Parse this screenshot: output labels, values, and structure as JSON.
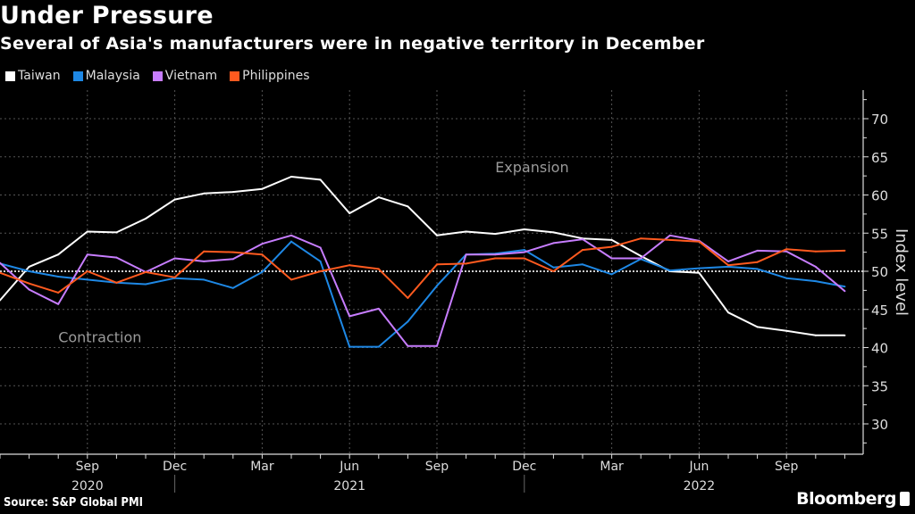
{
  "header": {
    "title": "Under Pressure",
    "subtitle": "Several of Asia's manufacturers were in negative territory in December"
  },
  "footer": {
    "source": "Source: S&P Global PMI",
    "brand": "Bloomberg"
  },
  "chart_data": {
    "type": "line",
    "title": "Under Pressure",
    "subtitle": "Several of Asia's manufacturers were in negative territory in December",
    "xlabel": "",
    "ylabel": "Index level",
    "ylim": [
      26,
      74
    ],
    "yticks": [
      30,
      35,
      40,
      45,
      50,
      55,
      60,
      65,
      70
    ],
    "grid": true,
    "legend_position": "top-left",
    "reference_line": 50,
    "annotations": [
      {
        "text": "Expansion",
        "x": "Nov 2021",
        "y": 63
      },
      {
        "text": "Contraction",
        "x": "Aug 2020",
        "y": 40.7
      }
    ],
    "x": [
      "Jun 2020",
      "Jul 2020",
      "Aug 2020",
      "Sep 2020",
      "Oct 2020",
      "Nov 2020",
      "Dec 2020",
      "Jan 2021",
      "Feb 2021",
      "Mar 2021",
      "Apr 2021",
      "May 2021",
      "Jun 2021",
      "Jul 2021",
      "Aug 2021",
      "Sep 2021",
      "Oct 2021",
      "Nov 2021",
      "Dec 2021",
      "Jan 2022",
      "Feb 2022",
      "Mar 2022",
      "Apr 2022",
      "May 2022",
      "Jun 2022",
      "Jul 2022",
      "Aug 2022",
      "Sep 2022",
      "Oct 2022",
      "Nov 2022"
    ],
    "x_tick_labels": [
      {
        "month": "Sep",
        "year": "2020",
        "index": 3
      },
      {
        "month": "Dec",
        "year": "",
        "index": 6
      },
      {
        "month": "Mar",
        "year": "",
        "index": 9
      },
      {
        "month": "Jun",
        "year": "2021",
        "index": 12
      },
      {
        "month": "Sep",
        "year": "",
        "index": 15
      },
      {
        "month": "Dec",
        "year": "",
        "index": 18
      },
      {
        "month": "Mar",
        "year": "",
        "index": 21
      },
      {
        "month": "Jun",
        "year": "2022",
        "index": 24
      },
      {
        "month": "Sep",
        "year": "",
        "index": 27
      }
    ],
    "series": [
      {
        "name": "Taiwan",
        "color": "#ffffff",
        "values": [
          46.2,
          50.6,
          52.2,
          55.2,
          55.1,
          56.9,
          59.4,
          60.2,
          60.4,
          60.8,
          62.4,
          62.0,
          57.6,
          59.7,
          58.5,
          54.7,
          55.2,
          54.9,
          55.5,
          55.1,
          54.3,
          54.1,
          52.0,
          50.0,
          49.8,
          44.6,
          42.7,
          42.2,
          41.6,
          41.6
        ]
      },
      {
        "name": "Malaysia",
        "color": "#1e88e5",
        "values": [
          51.0,
          50.0,
          49.3,
          48.9,
          48.5,
          48.3,
          49.1,
          48.9,
          47.8,
          49.9,
          53.9,
          51.3,
          40.1,
          40.1,
          43.4,
          48.1,
          52.2,
          52.3,
          52.8,
          50.5,
          50.9,
          49.6,
          51.6,
          50.1,
          50.4,
          50.6,
          50.3,
          49.1,
          48.7,
          48.0
        ]
      },
      {
        "name": "Vietnam",
        "color": "#c77dff",
        "values": [
          51.1,
          47.6,
          45.7,
          52.2,
          51.8,
          49.9,
          51.7,
          51.3,
          51.6,
          53.6,
          54.7,
          53.1,
          44.1,
          45.1,
          40.2,
          40.2,
          52.2,
          52.2,
          52.5,
          53.7,
          54.2,
          51.7,
          51.7,
          54.7,
          54.0,
          51.3,
          52.7,
          52.6,
          50.6,
          47.4
        ]
      },
      {
        "name": "Philippines",
        "color": "#ff5a1f",
        "values": [
          49.8,
          48.4,
          47.2,
          50.0,
          48.5,
          49.9,
          49.2,
          52.6,
          52.5,
          52.2,
          48.9,
          50.0,
          50.8,
          50.3,
          46.5,
          50.9,
          51.0,
          51.7,
          51.7,
          50.0,
          52.8,
          53.2,
          54.3,
          54.1,
          53.9,
          50.8,
          51.2,
          52.9,
          52.6,
          52.7
        ]
      }
    ]
  }
}
